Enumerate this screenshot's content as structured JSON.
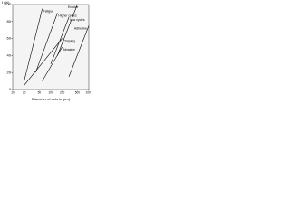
{
  "chart_data": {
    "type": "line",
    "y_label": "f (%)",
    "x_label": "Diameter of debris (µm)",
    "log_x": true,
    "xlim": [
      10,
      1000
    ],
    "xticks": [
      10,
      20,
      50,
      100,
      200,
      500,
      1000
    ],
    "ylim": [
      0,
      100
    ],
    "yticks": [
      0,
      20,
      40,
      60,
      80,
      100
    ],
    "series": [
      {
        "name": "Fatigue",
        "color": "#000000",
        "x": [
          20,
          60
        ],
        "values": [
          10,
          95
        ]
      },
      {
        "name": "Higher cycles",
        "color": "#000000",
        "x": [
          40,
          150
        ],
        "values": [
          20,
          90
        ]
      },
      {
        "name": "Low cycles",
        "color": "#000000",
        "x": [
          100,
          300
        ],
        "values": [
          30,
          85
        ]
      },
      {
        "name": "Chipping",
        "color": "#000000",
        "x": [
          20,
          200
        ],
        "values": [
          5,
          60
        ]
      },
      {
        "name": "Erosive",
        "color": "#000000",
        "x": [
          150,
          500
        ],
        "values": [
          40,
          100
        ]
      },
      {
        "name": "Abrasive",
        "color": "#000000",
        "x": [
          60,
          200
        ],
        "values": [
          10,
          50
        ]
      },
      {
        "name": "Adhesive",
        "color": "#000000",
        "x": [
          300,
          1000
        ],
        "values": [
          15,
          75
        ]
      }
    ]
  }
}
